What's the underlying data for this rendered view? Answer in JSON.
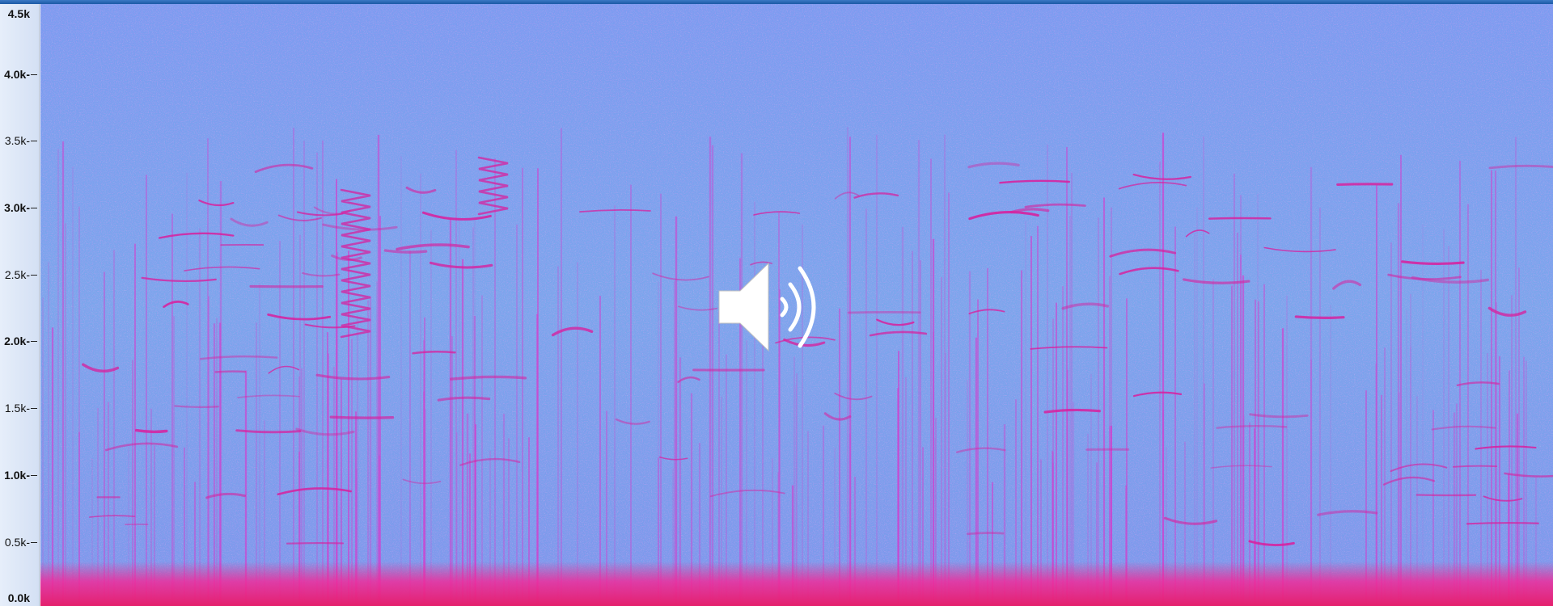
{
  "axis": {
    "labels": [
      "4.5k",
      "4.0k-",
      "3.5k-",
      "3.0k-",
      "2.5k-",
      "2.0k-",
      "1.5k-",
      "1.0k-",
      "0.5k-",
      "0.0k"
    ],
    "values_khz": [
      4.5,
      4.0,
      3.5,
      3.0,
      2.5,
      2.0,
      1.5,
      1.0,
      0.5,
      0.0
    ],
    "bold": [
      true,
      true,
      false,
      true,
      false,
      true,
      false,
      true,
      false,
      true
    ],
    "unit": "k"
  },
  "spectrogram": {
    "background_color": "#7aa2ee",
    "energy_color": "#ee2fc8",
    "low_band_color": "#f02a8c",
    "freq_range_khz": [
      0,
      4.5
    ]
  },
  "speaker_icon": {
    "name": "speaker-volume-icon",
    "color": "#ffffff"
  },
  "colors": {
    "window_accent": "#2a68b8",
    "axis_panel": "#dde7f7"
  }
}
